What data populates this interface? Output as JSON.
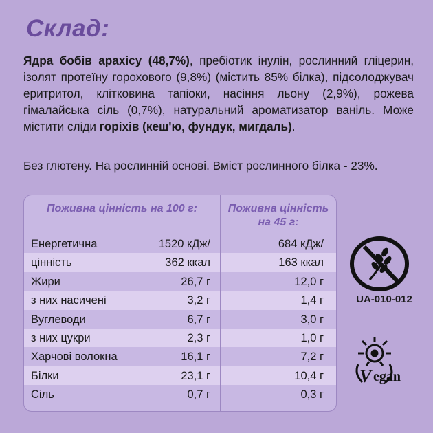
{
  "title": "Склад:",
  "ingredients": {
    "part1_bold": "Ядра бобів арахісу (48,7%)",
    "part2": ", пребіотик інулін, рослинний гліцерин, ізолят протеїну горохового (9,8%) (містить 85% білка), підсолоджувач еритритол, клітковина тапіоки, насіння льону (2,9%), рожева гімалайська сіль (0,7%), натуральний ароматизатор ваніль. Може містити сліди ",
    "part3_bold": "горіхів (кеш'ю, фундук, мигдаль)",
    "part4": "."
  },
  "note": "Без глютену. На рослинній основі. Вміст рослинного білка - 23%.",
  "table": {
    "header_100": "Поживна цінність на 100 г:",
    "header_45": "Поживна цінність на 45 г:",
    "rows": [
      {
        "label": "Енергетична",
        "v100": "1520 кДж/",
        "v45": "684 кДж/"
      },
      {
        "label": "цінність",
        "v100": "362 ккал",
        "v45": "163 ккал"
      },
      {
        "label": "Жири",
        "v100": "26,7 г",
        "v45": "12,0 г"
      },
      {
        "label": "з них насичені",
        "v100": "3,2 г",
        "v45": "1,4 г"
      },
      {
        "label": "Вуглеводи",
        "v100": "6,7 г",
        "v45": "3,0 г"
      },
      {
        "label": "з них цукри",
        "v100": "2,3 г",
        "v45": "1,0 г"
      },
      {
        "label": "Харчові волокна",
        "v100": "16,1 г",
        "v45": "7,2 г"
      },
      {
        "label": "Білки",
        "v100": "23,1 г",
        "v45": "10,4 г"
      },
      {
        "label": "Сіль",
        "v100": "0,7 г",
        "v45": "0,3 г"
      }
    ]
  },
  "certification_code": "UA-010-012",
  "vegan_logo_text": "Vegan",
  "colors": {
    "background": "#bba8d8",
    "title": "#6a4c9c",
    "header": "#7a5db0",
    "row_shade": "#ddd0ef"
  }
}
